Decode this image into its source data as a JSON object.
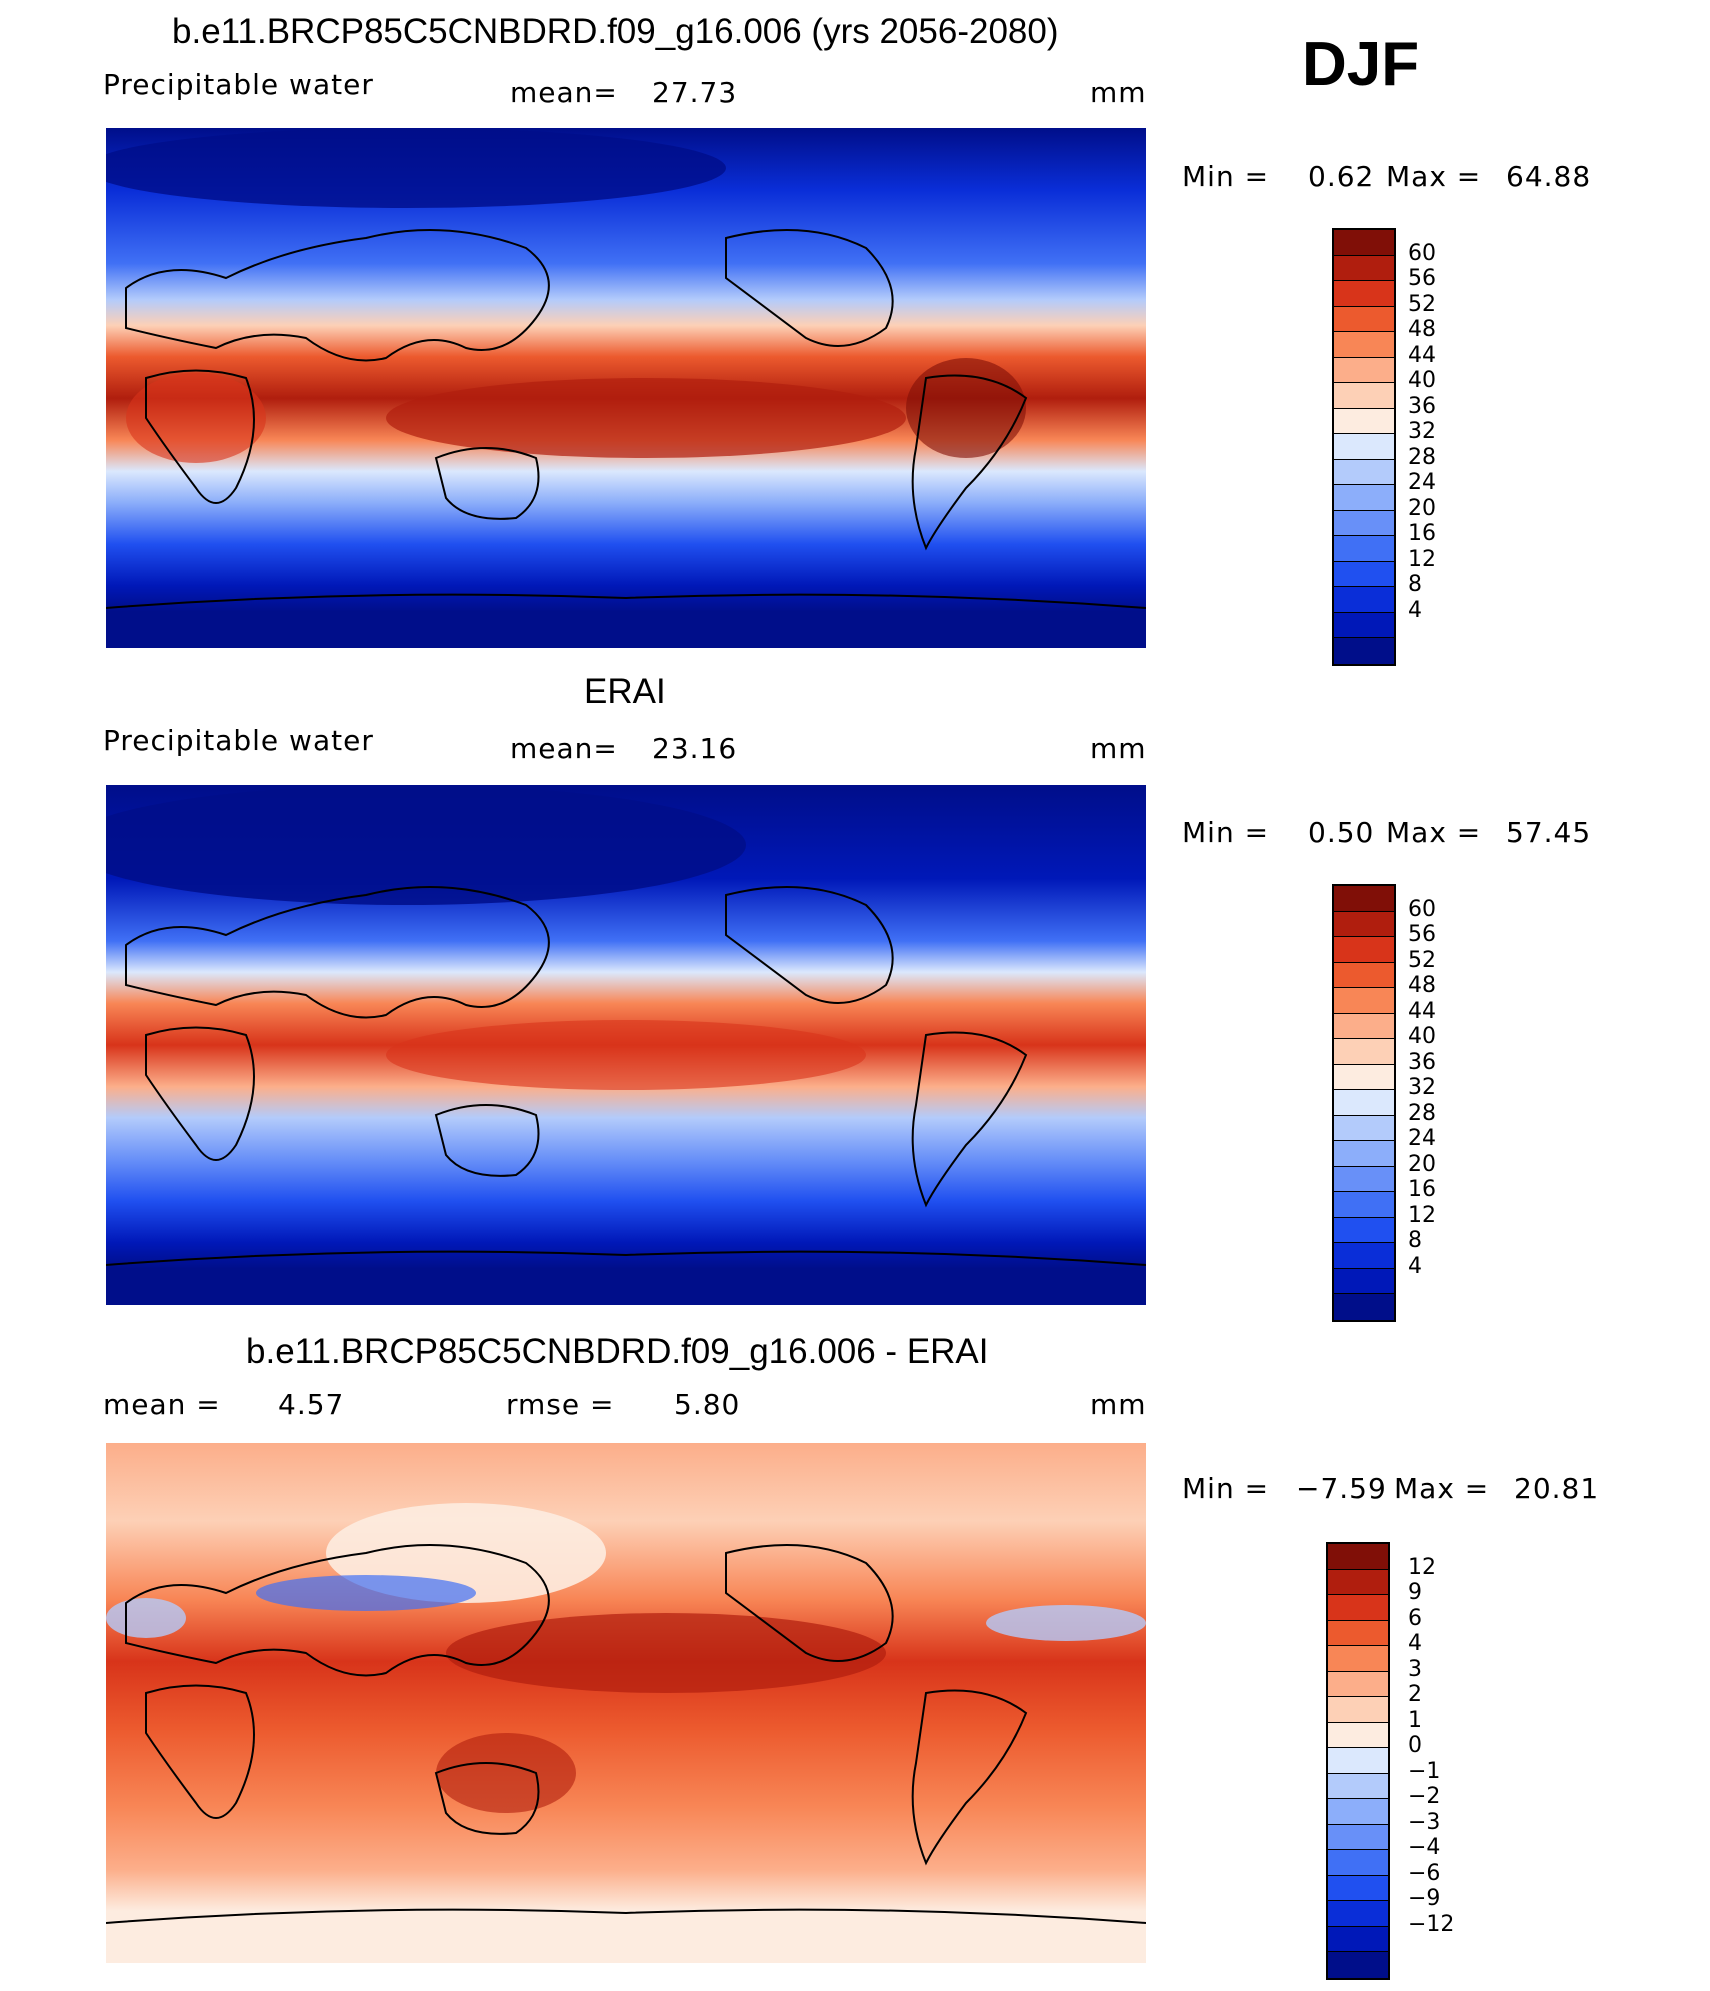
{
  "season": "DJF",
  "colors": {
    "abs": [
      "#000e8a",
      "#0018b8",
      "#0a2ed8",
      "#2050f0",
      "#4070f5",
      "#6890f8",
      "#8caefa",
      "#b3cbfb",
      "#dbe8fd",
      "#fdece0",
      "#fdd0b6",
      "#fcae8a",
      "#f88656",
      "#ec5a2e",
      "#d8341a",
      "#b01e0e",
      "#800f07"
    ],
    "diff": [
      "#000e8a",
      "#0018b8",
      "#0a2ed8",
      "#2050f0",
      "#4070f5",
      "#6890f8",
      "#8caefa",
      "#b3cbfb",
      "#dbe8fd",
      "#fdece0",
      "#fdd0b6",
      "#fcae8a",
      "#f88656",
      "#ec5a2e",
      "#d8341a",
      "#b01e0e",
      "#800f07"
    ]
  },
  "panels": [
    {
      "title": "b.e11.BRCP85C5CNBDRD.f09_g16.006 (yrs 2056-2080)",
      "variable": "Precipitable  water",
      "stat_label": "mean=",
      "stat_value": "27.73",
      "units": "mm",
      "min_label": "Min  =",
      "min_value": "0.62",
      "max_label": "Max  =",
      "max_value": "64.88",
      "colorbar_ticks": [
        "60",
        "56",
        "52",
        "48",
        "44",
        "40",
        "36",
        "32",
        "28",
        "24",
        "20",
        "16",
        "12",
        "8",
        "4"
      ]
    },
    {
      "title": "ERAI",
      "variable": "Precipitable  water",
      "stat_label": "mean=",
      "stat_value": "23.16",
      "units": "mm",
      "min_label": "Min  =",
      "min_value": "0.50",
      "max_label": "Max  =",
      "max_value": "57.45",
      "colorbar_ticks": [
        "60",
        "56",
        "52",
        "48",
        "44",
        "40",
        "36",
        "32",
        "28",
        "24",
        "20",
        "16",
        "12",
        "8",
        "4"
      ]
    },
    {
      "title": "b.e11.BRCP85C5CNBDRD.f09_g16.006 - ERAI",
      "mean_label": "mean  =",
      "mean_value": "4.57",
      "rmse_label": "rmse  =",
      "rmse_value": "5.80",
      "units": "mm",
      "min_label": "Min  =",
      "min_value": "−7.59",
      "max_label": "Max  =",
      "max_value": "20.81",
      "colorbar_ticks": [
        "12",
        "9",
        "6",
        "4",
        "3",
        "2",
        "1",
        "0",
        "−1",
        "−2",
        "−3",
        "−4",
        "−6",
        "−9",
        "−12"
      ]
    }
  ]
}
